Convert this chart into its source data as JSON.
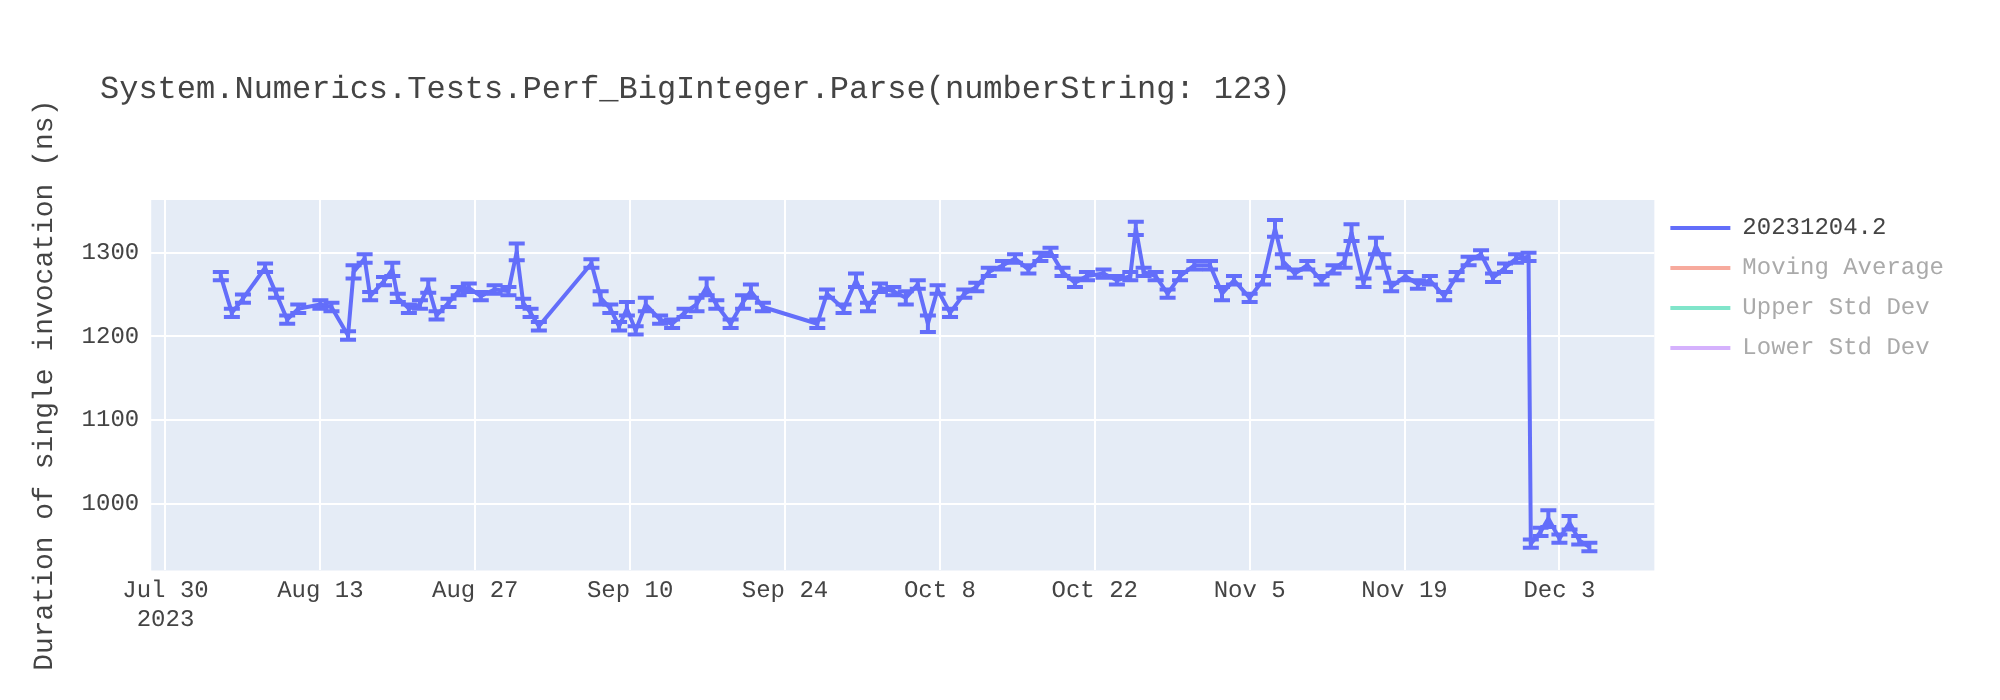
{
  "chart_data": {
    "type": "line",
    "title": "System.Numerics.Tests.Perf_BigInteger.Parse(numberString: 123)",
    "ylabel": "Duration of single invocation (ns)",
    "x": [
      "2023-08-04",
      "2023-08-05",
      "2023-08-06",
      "2023-08-08",
      "2023-08-09",
      "2023-08-10",
      "2023-08-11",
      "2023-08-13",
      "2023-08-14",
      "2023-08-15T12:00",
      "2023-08-16",
      "2023-08-17",
      "2023-08-17T12:00",
      "2023-08-18T18:00",
      "2023-08-19T12:00",
      "2023-08-20",
      "2023-08-21",
      "2023-08-22",
      "2023-08-22T18:00",
      "2023-08-23T12:00",
      "2023-08-24T14:00",
      "2023-08-25T12:00",
      "2023-08-26T10:00",
      "2023-08-27T12:00",
      "2023-08-28T18:00",
      "2023-08-30",
      "2023-08-30T18:00",
      "2023-08-31T08:00",
      "2023-09-01",
      "2023-09-01T18:00",
      "2023-09-06T12:00",
      "2023-09-07T08:00",
      "2023-09-08T05:00",
      "2023-09-09",
      "2023-09-09T17:00",
      "2023-09-10T12:00",
      "2023-09-11T10:00",
      "2023-09-12T17:00",
      "2023-09-13T19:00",
      "2023-09-14T22:00",
      "2023-09-16",
      "2023-09-16T22:00",
      "2023-09-17T19:00",
      "2023-09-19T02:00",
      "2023-09-20T05:00",
      "2023-09-20T22:00",
      "2023-09-22",
      "2023-09-26T22:00",
      "2023-09-27T19:00",
      "2023-09-29T07:00",
      "2023-09-30T10:00",
      "2023-10-01T12:00",
      "2023-10-02T14:00",
      "2023-10-03T19:00",
      "2023-10-04T22:00",
      "2023-10-06",
      "2023-10-06T22:00",
      "2023-10-07T19:00",
      "2023-10-08T22:00",
      "2023-10-10T05:00",
      "2023-10-11T07:00",
      "2023-10-12T10:00",
      "2023-10-13T17:00",
      "2023-10-14T19:00",
      "2023-10-16",
      "2023-10-17T02:00",
      "2023-10-18",
      "2023-10-19T02:00",
      "2023-10-20T05:00",
      "2023-10-21T07:00",
      "2023-10-22T19:00",
      "2023-10-24",
      "2023-10-25T05:00",
      "2023-10-25T17:00",
      "2023-10-26T10:00",
      "2023-10-27T12:00",
      "2023-10-28T14:00",
      "2023-10-29T17:00",
      "2023-10-31",
      "2023-11-01T10:00",
      "2023-11-02T12:00",
      "2023-11-03T14:00",
      "2023-11-05",
      "2023-11-06T05:00",
      "2023-11-07T07:00",
      "2023-11-08",
      "2023-11-09T02:00",
      "2023-11-10T05:00",
      "2023-11-11T12:00",
      "2023-11-12T14:00",
      "2023-11-13T14:00",
      "2023-11-14T05:00",
      "2023-11-15T07:00",
      "2023-11-16T10:00",
      "2023-11-17T02:00",
      "2023-11-17T19:00",
      "2023-11-19T02:00",
      "2023-11-20T05:00",
      "2023-11-21T07:00",
      "2023-11-22T14:00",
      "2023-11-23T17:00",
      "2023-11-24T19:00",
      "2023-11-25T22:00",
      "2023-11-27",
      "2023-11-28T02:00",
      "2023-11-29T02:00",
      "2023-11-30T05:00",
      "2023-11-30T10:00",
      "2023-12-01T07:00",
      "2023-12-02",
      "2023-12-03",
      "2023-12-03T22:00",
      "2023-12-04T19:00",
      "2023-12-05T17:00"
    ],
    "series": [
      {
        "name": "20231204.2",
        "color": "#636efa",
        "values": [
          1272,
          1228,
          1245,
          1282,
          1251,
          1220,
          1233,
          1238,
          1235,
          1201,
          1277,
          1293,
          1248,
          1266,
          1280,
          1246,
          1233,
          1238,
          1260,
          1225,
          1240,
          1254,
          1258,
          1248,
          1256,
          1254,
          1301,
          1240,
          1228,
          1212,
          1287,
          1246,
          1233,
          1212,
          1233,
          1207,
          1238,
          1220,
          1215,
          1228,
          1238,
          1259,
          1238,
          1215,
          1241,
          1254,
          1235,
          1215,
          1251,
          1233,
          1267,
          1235,
          1258,
          1254,
          1246,
          1262,
          1215,
          1256,
          1228,
          1251,
          1259,
          1277,
          1285,
          1293,
          1280,
          1295,
          1301,
          1277,
          1264,
          1272,
          1275,
          1267,
          1272,
          1329,
          1277,
          1272,
          1251,
          1272,
          1285,
          1285,
          1251,
          1267,
          1246,
          1267,
          1329,
          1290,
          1275,
          1285,
          1267,
          1280,
          1290,
          1324,
          1264,
          1308,
          1290,
          1259,
          1272,
          1262,
          1267,
          1248,
          1272,
          1290,
          1298,
          1270,
          1282,
          1293,
          1295,
          952,
          966,
          982,
          958,
          977,
          956,
          948
        ],
        "errors": [
          5,
          5,
          5,
          5,
          5,
          5,
          5,
          5,
          5,
          5,
          8,
          5,
          5,
          5,
          8,
          5,
          5,
          5,
          8,
          5,
          5,
          5,
          5,
          5,
          5,
          5,
          10,
          5,
          5,
          5,
          5,
          8,
          5,
          5,
          8,
          5,
          8,
          5,
          5,
          5,
          8,
          10,
          5,
          5,
          8,
          8,
          5,
          5,
          5,
          5,
          8,
          5,
          5,
          5,
          8,
          5,
          10,
          5,
          5,
          5,
          5,
          5,
          5,
          5,
          5,
          5,
          5,
          5,
          5,
          5,
          5,
          5,
          5,
          8,
          5,
          5,
          5,
          5,
          5,
          5,
          8,
          5,
          5,
          5,
          10,
          8,
          5,
          5,
          5,
          5,
          8,
          10,
          5,
          10,
          8,
          5,
          5,
          5,
          5,
          5,
          5,
          5,
          5,
          5,
          5,
          5,
          5,
          5,
          5,
          10,
          5,
          8,
          5,
          5
        ]
      },
      {
        "name": "Moving Average",
        "color": "#f7aa9d",
        "values": [
          null,
          null,
          null,
          null,
          null,
          null,
          null,
          null,
          null,
          null,
          null,
          null,
          null,
          null,
          null,
          null,
          null,
          null,
          null,
          null,
          null,
          null,
          null,
          null,
          null,
          null,
          null,
          null,
          null,
          null,
          null,
          null,
          null,
          null,
          null,
          null,
          null,
          null,
          null,
          null,
          null,
          null,
          null,
          null,
          null,
          null,
          null,
          null,
          null,
          null,
          null,
          null,
          null,
          null,
          null,
          null,
          null,
          null,
          null,
          null,
          null,
          null,
          null,
          null,
          null,
          null,
          null,
          null,
          null,
          null,
          null,
          null,
          null,
          null,
          null,
          null,
          null,
          null,
          null,
          null,
          null,
          null,
          null,
          null,
          null,
          null,
          null,
          null,
          null,
          null,
          null,
          null,
          null,
          null,
          null,
          null,
          null,
          null,
          null,
          null,
          null,
          null,
          null,
          null,
          null,
          null,
          null,
          null,
          null,
          null,
          null,
          null,
          null,
          null
        ]
      },
      {
        "name": "Upper Std Dev",
        "color": "#80e5ca",
        "values": [
          null,
          null,
          null,
          null,
          null,
          null,
          null,
          null,
          null,
          null,
          null,
          null,
          null,
          null,
          null,
          null,
          null,
          null,
          null,
          null,
          null,
          null,
          null,
          null,
          null,
          null,
          null,
          null,
          null,
          null,
          null,
          null,
          null,
          null,
          null,
          null,
          null,
          null,
          null,
          null,
          null,
          null,
          null,
          null,
          null,
          null,
          null,
          null,
          null,
          null,
          null,
          null,
          null,
          null,
          null,
          null,
          null,
          null,
          null,
          null,
          null,
          null,
          null,
          null,
          null,
          null,
          null,
          null,
          null,
          null,
          null,
          null,
          null,
          null,
          null,
          null,
          null,
          null,
          null,
          null,
          null,
          null,
          null,
          null,
          null,
          null,
          null,
          null,
          null,
          null,
          null,
          null,
          null,
          null,
          null,
          null,
          null,
          null,
          null,
          null,
          null,
          null,
          null,
          null,
          null,
          null,
          null,
          null,
          null,
          null,
          null,
          null,
          null,
          null
        ]
      },
      {
        "name": "Lower Std Dev",
        "color": "#d5b1fd",
        "values": [
          null,
          null,
          null,
          null,
          null,
          null,
          null,
          null,
          null,
          null,
          null,
          null,
          null,
          null,
          null,
          null,
          null,
          null,
          null,
          null,
          null,
          null,
          null,
          null,
          null,
          null,
          null,
          null,
          null,
          null,
          null,
          null,
          null,
          null,
          null,
          null,
          null,
          null,
          null,
          null,
          null,
          null,
          null,
          null,
          null,
          null,
          null,
          null,
          null,
          null,
          null,
          null,
          null,
          null,
          null,
          null,
          null,
          null,
          null,
          null,
          null,
          null,
          null,
          null,
          null,
          null,
          null,
          null,
          null,
          null,
          null,
          null,
          null,
          null,
          null,
          null,
          null,
          null,
          null,
          null,
          null,
          null,
          null,
          null,
          null,
          null,
          null,
          null,
          null,
          null,
          null,
          null,
          null,
          null,
          null,
          null,
          null,
          null,
          null,
          null,
          null,
          null,
          null,
          null,
          null,
          null,
          null,
          null,
          null,
          null,
          null,
          null,
          null,
          null
        ]
      }
    ],
    "xlim": [
      "2023-07-28T17:00",
      "2023-12-11T14:00"
    ],
    "xticks": [
      {
        "value": "2023-07-30",
        "label": "Jul 30\n2023"
      },
      {
        "value": "2023-08-13",
        "label": "Aug 13"
      },
      {
        "value": "2023-08-27",
        "label": "Aug 27"
      },
      {
        "value": "2023-09-10",
        "label": "Sep 10"
      },
      {
        "value": "2023-09-24",
        "label": "Sep 24"
      },
      {
        "value": "2023-10-08",
        "label": "Oct 8"
      },
      {
        "value": "2023-10-22",
        "label": "Oct 22"
      },
      {
        "value": "2023-11-05",
        "label": "Nov 5"
      },
      {
        "value": "2023-11-19",
        "label": "Nov 19"
      },
      {
        "value": "2023-12-03",
        "label": "Dec 3"
      }
    ],
    "ylim": [
      920,
      1363
    ],
    "yticks": [
      1000,
      1100,
      1200,
      1300
    ],
    "grid": true,
    "legend": "top right",
    "marker": "none",
    "line_style": "solid"
  }
}
